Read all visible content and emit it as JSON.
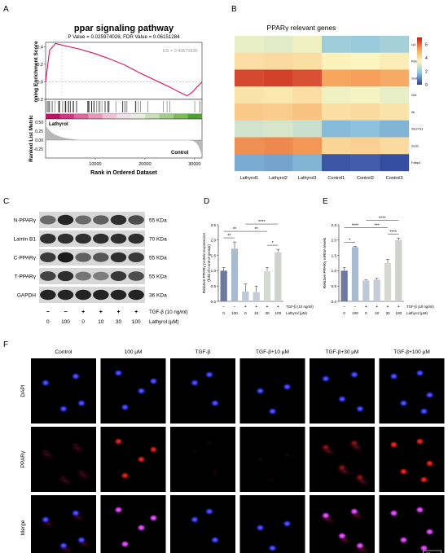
{
  "panels": {
    "a": "A",
    "b": "B",
    "c": "C",
    "d": "D",
    "e": "E",
    "f": "F"
  },
  "gsea": {
    "title": "ppar signaling pathway",
    "subtitle": "P Value = 0.025974026; FDR Value = 0.06151284",
    "es_label": "ES = 0.43670836",
    "ylabel_top": "nning Enrichment Score",
    "ylabel_bottom": "Ranked List Metric",
    "xlabel": "Rank in Ordered Dataset",
    "pos_label": "Lathyrol",
    "neg_label": "Control",
    "colors": {
      "curve": "#d6236b",
      "pos": "#b5166a",
      "neg": "#2e8b2e"
    },
    "chart_data": {
      "type": "line",
      "x": [
        0,
        800,
        2000,
        4000,
        7000,
        10000,
        13000,
        16000,
        19000,
        22000,
        25000,
        27000,
        28500,
        29500,
        30500,
        31500
      ],
      "values": [
        0,
        0.36,
        0.437,
        0.41,
        0.37,
        0.32,
        0.26,
        0.19,
        0.1,
        0.02,
        -0.06,
        -0.12,
        -0.16,
        -0.12,
        -0.06,
        0
      ],
      "xlim": [
        0,
        31500
      ],
      "ylim": [
        -0.2,
        0.45
      ],
      "yticks": [
        "0.4",
        "0.2",
        "0.0",
        "-0.2"
      ],
      "xticks": [
        "10000",
        "20000",
        "30000"
      ],
      "xtick_values": [
        10000,
        20000,
        30000
      ],
      "ytick_values": [
        0.4,
        0.2,
        0.0,
        -0.2
      ],
      "metric_ticks": [
        "0.50",
        "0.25",
        "0.00",
        "-0.25"
      ]
    }
  },
  "heatmap": {
    "title": "PPARγ relevant genes",
    "chart_data": {
      "type": "heatmap",
      "rows": [
        "Lpl",
        "Rxra",
        "Sod2",
        "Glo",
        "Ilk",
        "Slc27a1",
        "Scd1",
        "Fabp4"
      ],
      "cols": [
        "Lathyrol1",
        "Lathyrol2",
        "Lathyrol3",
        "Control1",
        "Control2",
        "Control3"
      ],
      "values": [
        [
          3.2,
          3.1,
          3.3,
          2.0,
          1.9,
          2.1
        ],
        [
          4.0,
          4.1,
          4.0,
          3.6,
          3.5,
          3.7
        ],
        [
          6.4,
          6.5,
          6.3,
          5.2,
          5.3,
          5.1
        ],
        [
          3.9,
          3.8,
          4.0,
          3.3,
          3.4,
          3.2
        ],
        [
          4.5,
          4.4,
          4.6,
          4.0,
          4.1,
          3.9
        ],
        [
          2.8,
          2.9,
          2.7,
          1.6,
          1.7,
          1.5
        ],
        [
          5.5,
          5.6,
          5.4,
          4.2,
          4.3,
          4.1
        ],
        [
          1.4,
          1.3,
          1.5,
          0.3,
          0.4,
          0.2
        ]
      ],
      "colorbar": [
        "6",
        "4",
        "2",
        "0"
      ],
      "colorbar_values": [
        6,
        4,
        2,
        0
      ],
      "range": [
        0,
        7
      ]
    }
  },
  "western": {
    "labels": [
      "N-PPARγ",
      "Lamin B1",
      "C-PPARγ",
      "T-PPARγ",
      "GAPDH"
    ],
    "sizes": [
      "55 KDa",
      "70 KDa",
      "55 KDa",
      "55 KDa",
      "36 KDa"
    ],
    "intensities": [
      [
        0.55,
        0.9,
        0.55,
        0.6,
        0.85,
        0.7
      ],
      [
        0.85,
        0.85,
        0.85,
        0.85,
        0.85,
        0.85
      ],
      [
        0.8,
        0.95,
        0.6,
        0.65,
        0.85,
        0.8
      ],
      [
        0.75,
        0.85,
        0.5,
        0.45,
        0.8,
        0.7
      ],
      [
        0.9,
        0.9,
        0.9,
        0.9,
        0.9,
        0.9
      ]
    ],
    "tgf_signs": [
      "−",
      "−",
      "+",
      "+",
      "+",
      "+"
    ],
    "dose": [
      "0",
      "100",
      "0",
      "10",
      "30",
      "100"
    ],
    "tgf_label": "TGF-β (10 ng/ml)",
    "dose_label": "Lathyrol (μM)"
  },
  "bar_d": {
    "chart_data": {
      "type": "bar",
      "ylabel": "Relative PPARγ protein expression\n(fold of control group)",
      "values": [
        1.0,
        1.72,
        0.32,
        0.3,
        0.98,
        1.6
      ],
      "errors": [
        0.1,
        0.22,
        0.25,
        0.2,
        0.12,
        0.1
      ],
      "ylim": [
        0,
        2.5
      ],
      "yticks": [
        "0.0",
        "0.5",
        "1.0",
        "1.5",
        "2.0",
        "2.5"
      ],
      "ytick_values": [
        0,
        0.5,
        1,
        1.5,
        2,
        2.5
      ],
      "colors": [
        "#6b7a9e",
        "#a9bccf",
        "#bdc8d8",
        "#c4ccd8",
        "#d6d8d2",
        "#cfd2cf"
      ],
      "signs": [
        "−",
        "−",
        "+",
        "+",
        "+",
        "+"
      ],
      "dose": [
        "0",
        "100",
        "0",
        "10",
        "30",
        "100"
      ],
      "sig": [
        {
          "from": 0,
          "to": 1,
          "label": "**",
          "level": 0
        },
        {
          "from": 0,
          "to": 2,
          "label": "**",
          "level": 1
        },
        {
          "from": 2,
          "to": 4,
          "label": "**",
          "level": 1
        },
        {
          "from": 4,
          "to": 5,
          "label": "*",
          "level": 0
        },
        {
          "from": 2,
          "to": 5,
          "label": "****",
          "level": 2
        }
      ],
      "tgf_label": "TGF-β (10 ng/ml)",
      "dose_label": "Lathyrol (μM)"
    }
  },
  "bar_e": {
    "chart_data": {
      "type": "bar",
      "ylabel": "Relative PPARγ mRNA levels",
      "values": [
        1.0,
        1.77,
        0.68,
        0.71,
        1.25,
        2.0
      ],
      "errors": [
        0.1,
        0.03,
        0.02,
        0.04,
        0.12,
        0.06
      ],
      "ylim": [
        0,
        2.5
      ],
      "yticks": [
        "0.0",
        "0.5",
        "1.0",
        "1.5",
        "2.0",
        "2.5"
      ],
      "ytick_values": [
        0,
        0.5,
        1,
        1.5,
        2,
        2.5
      ],
      "colors": [
        "#6b7a9e",
        "#a9bccf",
        "#bdc8d8",
        "#c4ccd8",
        "#d6d8d2",
        "#cfd2cf"
      ],
      "signs": [
        "−",
        "−",
        "+",
        "+",
        "+",
        "+"
      ],
      "dose": [
        "0",
        "100",
        "0",
        "10",
        "30",
        "100"
      ],
      "sig": [
        {
          "from": 0,
          "to": 1,
          "label": "*",
          "level": 0
        },
        {
          "from": 0,
          "to": 2,
          "label": "****",
          "level": 1
        },
        {
          "from": 2,
          "to": 4,
          "label": "***",
          "level": 1
        },
        {
          "from": 4,
          "to": 5,
          "label": "****",
          "level": 0
        },
        {
          "from": 2,
          "to": 5,
          "label": "****",
          "level": 2
        }
      ],
      "tgf_label": "TGF-β (10 ng/ml)",
      "dose_label": "Lathyrol (μM)"
    }
  },
  "micro": {
    "cols": [
      "Control",
      "100 μM",
      "TGF-β",
      "TGF-β+10 μM",
      "TGF-β+30 μM",
      "TGF-β+100 μM"
    ],
    "rows": [
      "DAPI",
      "PPARγ",
      "Merge"
    ],
    "scale_label": "50 μm"
  }
}
